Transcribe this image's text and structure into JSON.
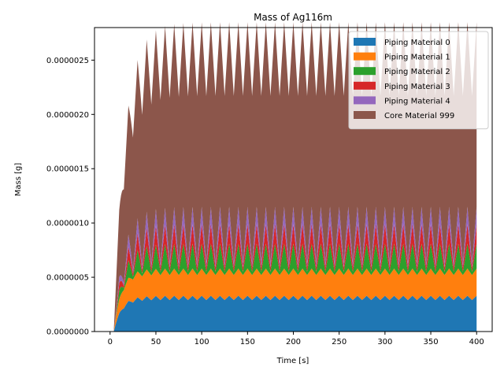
{
  "chart_data": {
    "type": "area",
    "stacked": true,
    "title": "Mass of Ag116m",
    "xlabel": "Time [s]",
    "ylabel": "Mass [g]",
    "xlim": [
      -17,
      417
    ],
    "ylim": [
      0,
      2.8e-06
    ],
    "x_ticks": [
      0,
      50,
      100,
      150,
      200,
      250,
      300,
      350,
      400
    ],
    "x_tick_labels": [
      "0",
      "50",
      "100",
      "150",
      "200",
      "250",
      "300",
      "350",
      "400"
    ],
    "y_ticks": [
      0,
      5e-07,
      1e-06,
      1.5e-06,
      2e-06,
      2.5e-06
    ],
    "y_tick_labels": [
      "0.0000000",
      "0.0000005",
      "0.0000010",
      "0.0000015",
      "0.0000020",
      "0.0000025"
    ],
    "legend_position": "top-right",
    "start_time": 4,
    "end_time": 400,
    "series": [
      {
        "name": "Piping Material 0",
        "color": "#1f77b4",
        "rise_time": 25,
        "plateau": 3.1e-07,
        "oscillation": 2e-08,
        "period": 10
      },
      {
        "name": "Piping Material 1",
        "color": "#ff7f0e",
        "rise_time": 25,
        "plateau": 2.4e-07,
        "oscillation": 1e-08,
        "period": 10
      },
      {
        "name": "Piping Material 2",
        "color": "#2ca02c",
        "rise_time": 40,
        "plateau": 1.3e-07,
        "oscillation": 1e-07,
        "period": 10
      },
      {
        "name": "Piping Material 3",
        "color": "#d62728",
        "rise_time": 40,
        "plateau": 1.1e-07,
        "oscillation": 7e-08,
        "period": 10
      },
      {
        "name": "Piping Material 4",
        "color": "#9467bd",
        "rise_time": 40,
        "plateau": 1e-07,
        "oscillation": 6e-08,
        "period": 10
      },
      {
        "name": "Core Material 999",
        "color": "#8c564b",
        "rise_time": 40,
        "plateau": 1.62e-06,
        "oscillation": 8e-08,
        "period": 10
      }
    ]
  }
}
